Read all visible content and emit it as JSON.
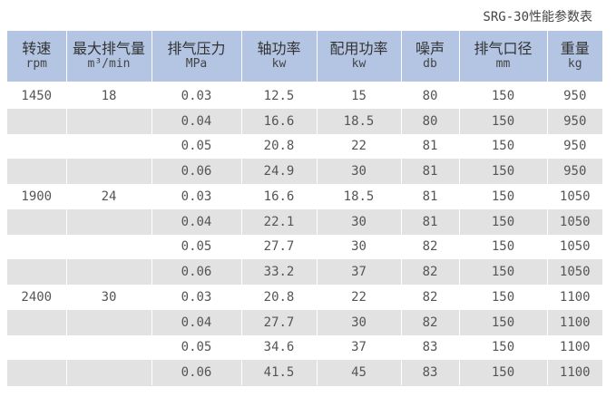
{
  "caption": "SRG-30性能参数表",
  "table": {
    "headers": [
      {
        "name": "转速",
        "unit": "rpm"
      },
      {
        "name": "最大排气量",
        "unit": "m³/min"
      },
      {
        "name": "排气压力",
        "unit": "MPa"
      },
      {
        "name": "轴功率",
        "unit": "kw"
      },
      {
        "name": "配用功率",
        "unit": "kw"
      },
      {
        "name": "噪声",
        "unit": "db"
      },
      {
        "name": "排气口径",
        "unit": "mm"
      },
      {
        "name": "重量",
        "unit": "kg"
      }
    ],
    "rows": [
      [
        "1450",
        "18",
        "0.03",
        "12.5",
        "15",
        "80",
        "150",
        "950"
      ],
      [
        "",
        "",
        "0.04",
        "16.6",
        "18.5",
        "80",
        "150",
        "950"
      ],
      [
        "",
        "",
        "0.05",
        "20.8",
        "22",
        "81",
        "150",
        "950"
      ],
      [
        "",
        "",
        "0.06",
        "24.9",
        "30",
        "81",
        "150",
        "950"
      ],
      [
        "1900",
        "24",
        "0.03",
        "16.6",
        "18.5",
        "81",
        "150",
        "1050"
      ],
      [
        "",
        "",
        "0.04",
        "22.1",
        "30",
        "81",
        "150",
        "1050"
      ],
      [
        "",
        "",
        "0.05",
        "27.7",
        "30",
        "82",
        "150",
        "1050"
      ],
      [
        "",
        "",
        "0.06",
        "33.2",
        "37",
        "82",
        "150",
        "1050"
      ],
      [
        "2400",
        "30",
        "0.03",
        "20.8",
        "22",
        "82",
        "150",
        "1100"
      ],
      [
        "",
        "",
        "0.04",
        "27.7",
        "30",
        "82",
        "150",
        "1100"
      ],
      [
        "",
        "",
        "0.05",
        "34.6",
        "37",
        "83",
        "150",
        "1100"
      ],
      [
        "",
        "",
        "0.06",
        "41.5",
        "45",
        "83",
        "150",
        "1100"
      ]
    ]
  },
  "colors": {
    "header_bg": "#b3c5e3",
    "shade_bg": "#e2e2e2",
    "text": "#555555"
  }
}
